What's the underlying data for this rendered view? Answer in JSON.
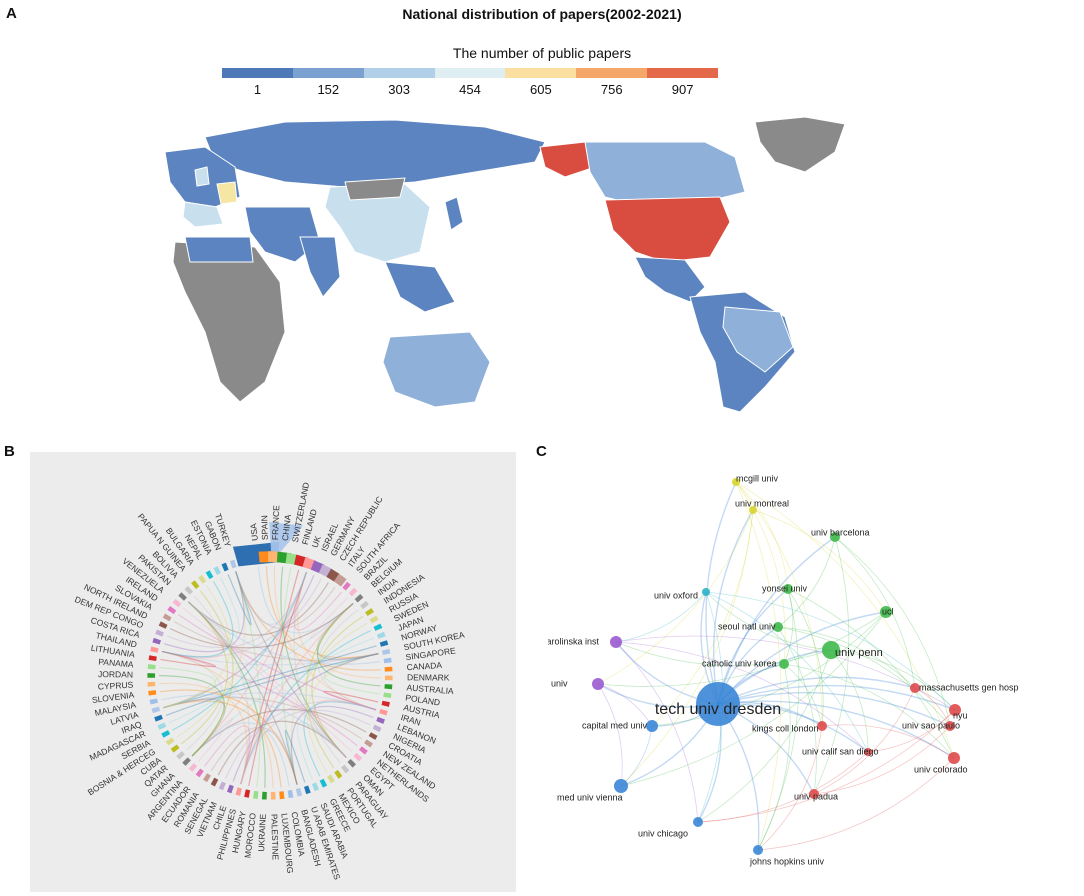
{
  "panels": {
    "a": "A",
    "b": "B",
    "c": "C"
  },
  "map": {
    "title": "National distribution of papers(2002-2021)",
    "legend_title": "The number of public papers",
    "legend_values": [
      "1",
      "152",
      "303",
      "454",
      "605",
      "756",
      "907"
    ],
    "legend_colors": [
      "#4e79b8",
      "#7ba1d0",
      "#b1cfe8",
      "#deeef3",
      "#fbdfa1",
      "#f5a76a",
      "#e4694a"
    ],
    "colors": {
      "no_data": "#8a8a8a",
      "low": "#5b84c0",
      "mid": "#8fb0d8",
      "light": "#c8dfee",
      "top": "#d94c40",
      "yellow": "#f6e6a3"
    }
  },
  "chord": {
    "labels": [
      "USA",
      "SPAIN",
      "FRANCE",
      "CHINA",
      "SWITZERLAND",
      "FINLAND",
      "UK",
      "ISRAEL",
      "GERMANY",
      "CZECH REPUBLIC",
      "ITALY",
      "SOUTH AFRICA",
      "BRAZIL",
      "BELGIUM",
      "INDIA",
      "INDONESIA",
      "RUSSIA",
      "SWEDEN",
      "JAPAN",
      "NORWAY",
      "SOUTH KOREA",
      "SINGAPORE",
      "CANADA",
      "DENMARK",
      "AUSTRALIA",
      "POLAND",
      "AUSTRIA",
      "IRAN",
      "LEBANON",
      "NIGERIA",
      "CROATIA",
      "NEW ZEALAND",
      "NETHERLANDS",
      "EGYPT",
      "OMAN",
      "PARAGUAY",
      "PORTUGAL",
      "MEXICO",
      "GREECE",
      "SAUDI ARABIA",
      "U ARAB EMIRATES",
      "BANGLADESH",
      "COLOMBIA",
      "LUXEMBOURG",
      "PALESTINE",
      "UKRAINE",
      "MOROCCO",
      "HUNGARY",
      "PHILIPPINES",
      "CHILE",
      "VIETNAM",
      "SENEGAL",
      "ROMANIA",
      "ECUADOR",
      "ARGENTINA",
      "GHANA",
      "QATAR",
      "CUBA",
      "BOSNIA & HERCEG",
      "SERBIA",
      "MADAGASCAR",
      "IRAQ",
      "LATVIA",
      "MALAYSIA",
      "SLOVENIA",
      "CYPRUS",
      "JORDAN",
      "PANAMA",
      "LITHUANIA",
      "THAILAND",
      "COSTA RICA",
      "DEM REP CONGO",
      "NORTH IRELAND",
      "SLOVAKIA",
      "IRELAND",
      "VENEZUELA",
      "PAKISTAN",
      "BOLIVIA",
      "PAPUA N GUINEA",
      "BULGARIA",
      "NEPAL",
      "ESTONIA",
      "GABON",
      "TURKEY"
    ]
  },
  "network": {
    "nodes": [
      {
        "label": "tech univ dresden",
        "cluster": "blue"
      },
      {
        "label": "univ penn",
        "cluster": "green"
      },
      {
        "label": "mcgill univ",
        "cluster": "yellow"
      },
      {
        "label": "univ montreal",
        "cluster": "yellow"
      },
      {
        "label": "univ barcelona",
        "cluster": "green"
      },
      {
        "label": "univ oxford",
        "cluster": "cyan"
      },
      {
        "label": "yonsei univ",
        "cluster": "green"
      },
      {
        "label": "ucl",
        "cluster": "green"
      },
      {
        "label": "seoul natl univ",
        "cluster": "green"
      },
      {
        "label": "karolinska inst",
        "cluster": "purple"
      },
      {
        "label": "catholic univ korea",
        "cluster": "green"
      },
      {
        "label": "stockholm univ",
        "cluster": "purple"
      },
      {
        "label": "massachusetts gen hosp",
        "cluster": "red"
      },
      {
        "label": "nyu",
        "cluster": "red"
      },
      {
        "label": "kings coll london",
        "cluster": "red"
      },
      {
        "label": "capital med univ",
        "cluster": "blue"
      },
      {
        "label": "univ sao paulo",
        "cluster": "red"
      },
      {
        "label": "univ calif san diego",
        "cluster": "red"
      },
      {
        "label": "univ colorado",
        "cluster": "red"
      },
      {
        "label": "med univ vienna",
        "cluster": "blue"
      },
      {
        "label": "univ padua",
        "cluster": "red"
      },
      {
        "label": "univ chicago",
        "cluster": "blue"
      },
      {
        "label": "johns hopkins univ",
        "cluster": "blue"
      }
    ],
    "cluster_colors": {
      "blue": "#3a86d6",
      "green": "#3fb94a",
      "yellow": "#d8d42e",
      "cyan": "#2bb4c9",
      "purple": "#9b5bd0",
      "red": "#e04a4a"
    }
  }
}
